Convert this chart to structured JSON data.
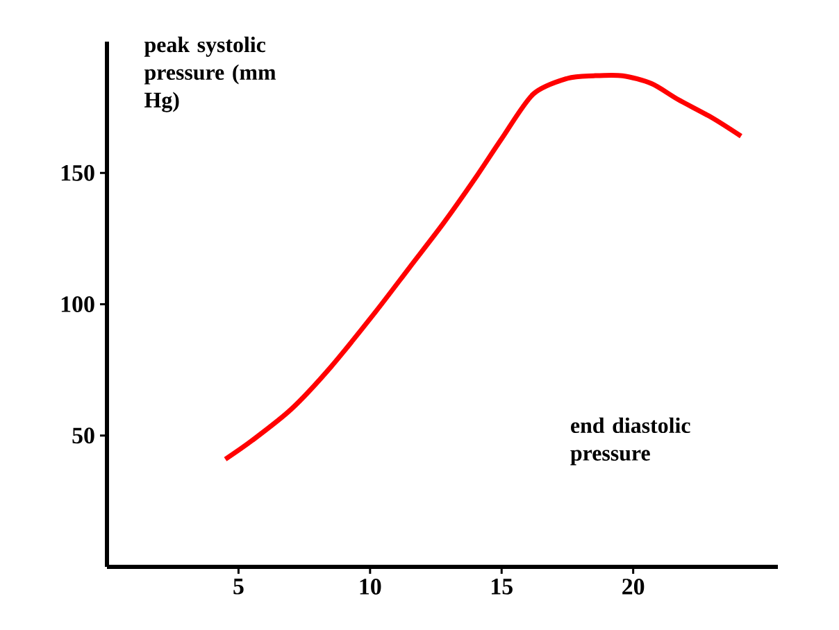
{
  "chart_data": {
    "type": "line",
    "xlabel": "end diastolic pressure",
    "ylabel": "peak systolic pressure (mm Hg)",
    "x": [
      4.5,
      5.5,
      7.0,
      8.5,
      10.2,
      11.5,
      12.8,
      14.0,
      15.0,
      16.2,
      17.5,
      18.5,
      19.6,
      20.7,
      21.7,
      23.0,
      24.1
    ],
    "values": [
      41,
      48,
      60,
      76,
      97,
      114,
      131,
      148,
      163,
      180,
      186,
      187,
      187,
      184,
      178,
      171,
      164
    ],
    "color": "#ff0000",
    "xlim": [
      0,
      25.5
    ],
    "ylim": [
      0,
      200
    ],
    "xticks": [
      5,
      10,
      15,
      20
    ],
    "yticks": [
      50,
      100,
      150
    ]
  }
}
